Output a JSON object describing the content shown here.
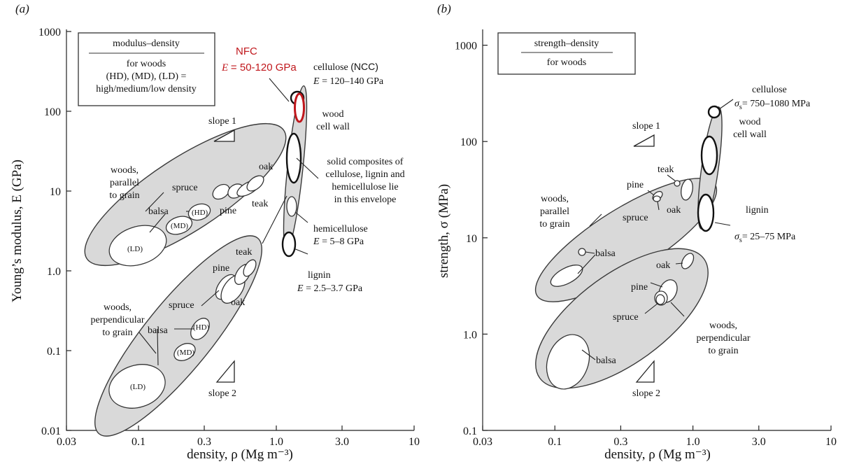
{
  "chart_data": [
    {
      "panel": "(a)",
      "type": "scatter",
      "xlabel": "density, ρ (Mg m⁻³)",
      "ylabel": "Young’s modulus, E (GPa)",
      "x_scale": "log",
      "y_scale": "log",
      "xlim": [
        0.03,
        10
      ],
      "ylim": [
        0.01,
        1000
      ],
      "xticks": [
        "0.03",
        "0.1",
        "0.3",
        "1.0",
        "3.0",
        "10"
      ],
      "yticks": [
        "0.01",
        "0.1",
        "1.0",
        "10",
        "100",
        "1000"
      ],
      "box": {
        "title": "modulus–density",
        "lines": [
          "for woods",
          "(HD), (MD), (LD) =",
          "high/medium/low density"
        ]
      },
      "regions": [
        {
          "name": "woods, parallel to grain",
          "x": [
            0.09,
            1.0
          ],
          "y": [
            1.0,
            45
          ]
        },
        {
          "name": "woods, perpendicular to grain",
          "x": [
            0.09,
            0.95
          ],
          "y": [
            0.02,
            1.5
          ]
        },
        {
          "name": "balsa (LD)",
          "x": 0.12,
          "y": 2.0
        },
        {
          "name": "balsa (MD)",
          "x": 0.2,
          "y": 3.0
        },
        {
          "name": "balsa (HD)",
          "x": 0.28,
          "y": 4.5
        },
        {
          "name": "spruce",
          "x": 0.42,
          "y": 10
        },
        {
          "name": "pine",
          "x": 0.55,
          "y": 11
        },
        {
          "name": "oak",
          "x": 0.7,
          "y": 13
        },
        {
          "name": "teak",
          "x": 0.68,
          "y": 10
        },
        {
          "name": "balsa (LD) perp.",
          "x": 0.12,
          "y": 0.04
        },
        {
          "name": "balsa (MD) perp.",
          "x": 0.22,
          "y": 0.09
        },
        {
          "name": "balsa (HD) perp.",
          "x": 0.28,
          "y": 0.18
        },
        {
          "name": "pine perp.",
          "x": 0.45,
          "y": 0.8
        },
        {
          "name": "spruce perp.",
          "x": 0.48,
          "y": 0.6
        },
        {
          "name": "oak perp.",
          "x": 0.62,
          "y": 0.7
        },
        {
          "name": "teak perp.",
          "x": 0.7,
          "y": 1.1
        },
        {
          "name": "cellulose (NCC)",
          "x": 1.5,
          "y": 130
        },
        {
          "name": "NFC",
          "x": 1.5,
          "y": 85
        },
        {
          "name": "wood cell wall",
          "x": 1.5,
          "y": 25
        },
        {
          "name": "hemicellulose",
          "x": 1.4,
          "y": 6.5
        },
        {
          "name": "lignin",
          "x": 1.3,
          "y": 3.0
        }
      ],
      "labels": {
        "nfc": "NFC",
        "nfc_e": "= 50-120 GPa",
        "cellulose": "cellulose",
        "ncc": "(NCC)",
        "cellulose_e": "= 120–140 GPa",
        "wood": "wood",
        "cell_wall": "cell wall",
        "solid": [
          "solid composites of",
          "cellulose, lignin and",
          "hemicellulose lie",
          "in this envelope"
        ],
        "hemicellulose": "hemicellulose",
        "hemicellulose_e": "= 5–8  GPa",
        "lignin": "lignin",
        "lignin_e": "= 2.5–3.7 GPa",
        "woods_par": [
          "woods,",
          "parallel",
          "to grain"
        ],
        "woods_perp": [
          "woods,",
          "perpendicular",
          "to grain"
        ],
        "spruce": "spruce",
        "pine": "pine",
        "oak": "oak",
        "teak": "teak",
        "balsa": "balsa",
        "ld": "(LD)",
        "md": "(MD)",
        "hd": "(HD)",
        "slope1": "slope 1",
        "slope2": "slope 2",
        "e_symbol": "E"
      }
    },
    {
      "panel": "(b)",
      "type": "scatter",
      "xlabel": "density, ρ (Mg m⁻³)",
      "ylabel": "strength, σ (MPa)",
      "x_scale": "log",
      "y_scale": "log",
      "xlim": [
        0.03,
        10
      ],
      "ylim": [
        0.1,
        10000
      ],
      "xticks": [
        "0.03",
        "0.1",
        "0.3",
        "1.0",
        "3.0",
        "10"
      ],
      "yticks": [
        "0.1",
        "1.0",
        "10",
        "100",
        "1000"
      ],
      "box": {
        "title": "strength–density",
        "lines": [
          "for woods"
        ]
      },
      "regions": [
        {
          "name": "woods, parallel to grain",
          "x": [
            0.09,
            1.0
          ],
          "y": [
            6,
            150
          ]
        },
        {
          "name": "woods, perpendicular to grain",
          "x": [
            0.09,
            1.1
          ],
          "y": [
            0.3,
            20
          ]
        },
        {
          "name": "balsa",
          "x": 0.17,
          "y": 16
        },
        {
          "name": "pine",
          "x": 0.6,
          "y": 80
        },
        {
          "name": "teak",
          "x": 0.75,
          "y": 110
        },
        {
          "name": "spruce",
          "x": 0.55,
          "y": 60
        },
        {
          "name": "oak",
          "x": 0.9,
          "y": 90
        },
        {
          "name": "oak perp.",
          "x": 0.95,
          "y": 12
        },
        {
          "name": "pine perp.",
          "x": 0.65,
          "y": 6
        },
        {
          "name": "spruce perp.",
          "x": 0.6,
          "y": 4.5
        },
        {
          "name": "balsa perp.",
          "x": 0.12,
          "y": 0.6
        },
        {
          "name": "cellulose",
          "x": 1.5,
          "y": 900
        },
        {
          "name": "wood cell wall",
          "x": 1.35,
          "y": 300
        },
        {
          "name": "lignin",
          "x": 1.3,
          "y": 55
        }
      ],
      "labels": {
        "cellulose": "cellulose",
        "cellulose_s": "= 750–1080 MPa",
        "wood": "wood",
        "cell_wall": "cell wall",
        "lignin": "lignin",
        "lignin_s": "= 25–75 MPa",
        "woods_par": [
          "woods,",
          "parallel",
          "to grain"
        ],
        "woods_perp": [
          "woods,",
          "perpendicular",
          "to grain"
        ],
        "teak": "teak",
        "pine": "pine",
        "oak": "oak",
        "spruce": "spruce",
        "balsa": "balsa",
        "slope1": "slope 1",
        "slope2": "slope 2",
        "sigma": "σ",
        "sub_s": "s"
      }
    }
  ]
}
